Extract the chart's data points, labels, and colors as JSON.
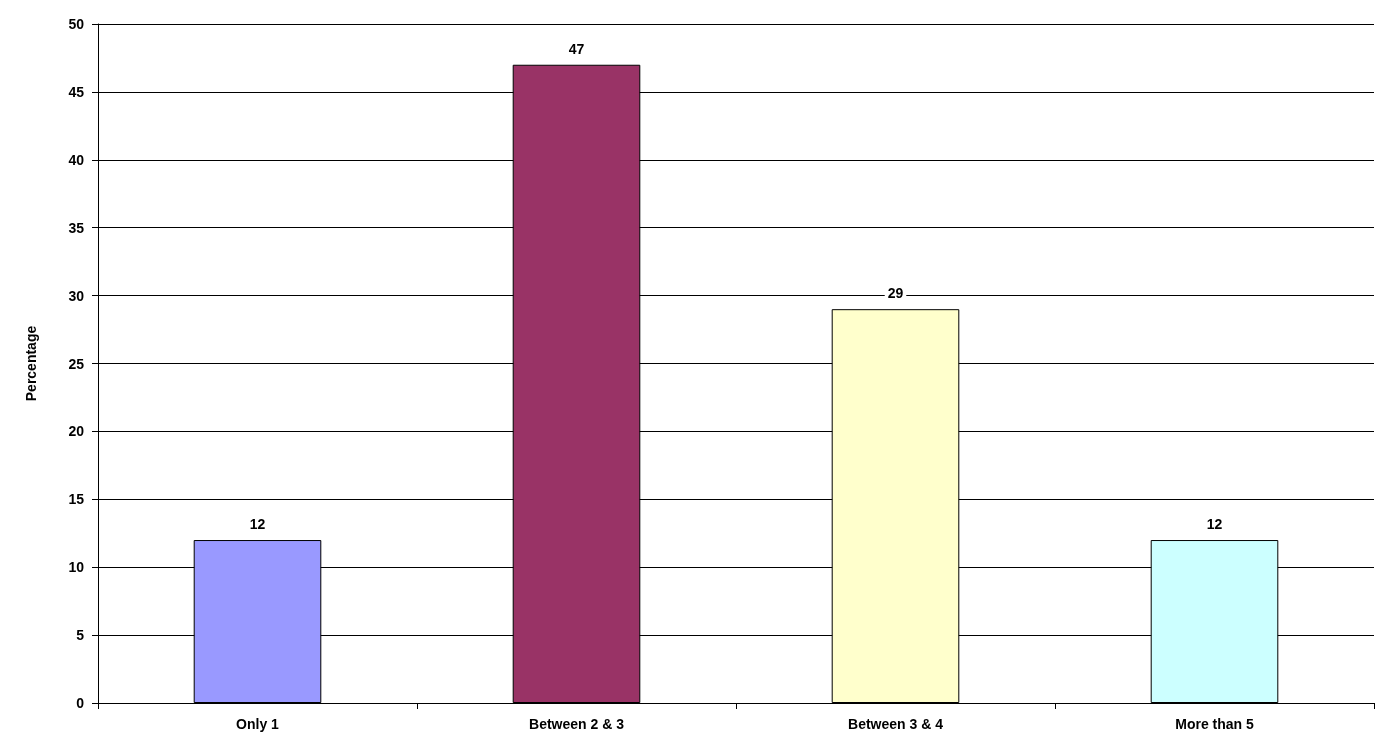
{
  "chart_data": {
    "type": "bar",
    "ylabel": "Percentage",
    "categories": [
      "Only 1",
      "Between 2 & 3",
      "Between 3 & 4",
      "More than 5"
    ],
    "values": [
      12,
      47,
      29,
      12
    ],
    "colors": [
      "#9999ff",
      "#993366",
      "#ffffcc",
      "#ccffff"
    ],
    "ylim": [
      0,
      50
    ],
    "yticks": [
      0,
      5,
      10,
      15,
      20,
      25,
      30,
      35,
      40,
      45,
      50
    ],
    "grid": "y",
    "data_labels": true
  }
}
